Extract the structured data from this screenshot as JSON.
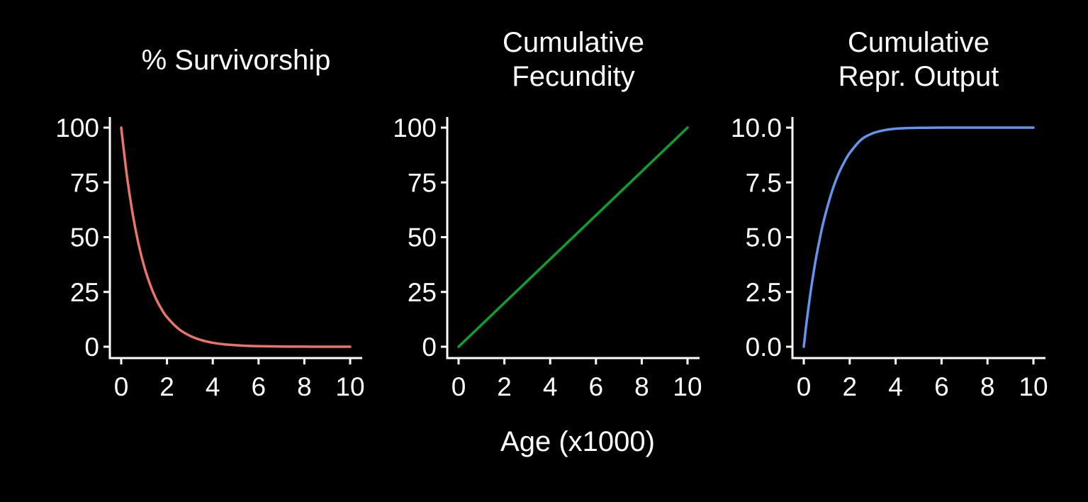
{
  "figure": {
    "xlabel": "Age (x1000)",
    "background": "#000000",
    "foreground": "#ffffff"
  },
  "chart_data": [
    {
      "type": "line",
      "title_lines": [
        "% Survivorship"
      ],
      "xlim": [
        0,
        10
      ],
      "ylim": [
        0,
        100
      ],
      "xticks": [
        0,
        2,
        4,
        6,
        8,
        10
      ],
      "yticks": [
        0,
        25,
        50,
        75,
        100
      ],
      "ytick_labels": [
        "0",
        "25",
        "50",
        "75",
        "100"
      ],
      "grid": false,
      "series": [
        {
          "color": "#E8746A",
          "x": [
            0,
            0.25,
            0.5,
            0.75,
            1,
            1.25,
            1.5,
            1.75,
            2,
            2.5,
            3,
            3.5,
            4,
            4.5,
            5,
            5.5,
            6,
            7,
            8,
            9,
            10
          ],
          "y": [
            100,
            77.9,
            60.7,
            47.2,
            36.8,
            28.7,
            22.3,
            17.4,
            13.5,
            8.2,
            5.0,
            3.0,
            1.8,
            1.1,
            0.7,
            0.4,
            0.25,
            0.1,
            0.03,
            0.01,
            0.0
          ]
        }
      ]
    },
    {
      "type": "line",
      "title_lines": [
        "Cumulative",
        "Fecundity"
      ],
      "xlim": [
        0,
        10
      ],
      "ylim": [
        0,
        100
      ],
      "xticks": [
        0,
        2,
        4,
        6,
        8,
        10
      ],
      "yticks": [
        0,
        25,
        50,
        75,
        100
      ],
      "ytick_labels": [
        "0",
        "25",
        "50",
        "75",
        "100"
      ],
      "grid": false,
      "series": [
        {
          "color": "#0E9F2E",
          "x": [
            0,
            10
          ],
          "y": [
            0,
            100
          ]
        }
      ]
    },
    {
      "type": "line",
      "title_lines": [
        "Cumulative",
        "Repr. Output"
      ],
      "xlim": [
        0,
        10
      ],
      "ylim": [
        0,
        10
      ],
      "xticks": [
        0,
        2,
        4,
        6,
        8,
        10
      ],
      "yticks": [
        0,
        2.5,
        5,
        7.5,
        10
      ],
      "ytick_labels": [
        "0.0",
        "2.5",
        "5.0",
        "7.5",
        "10.0"
      ],
      "grid": false,
      "series": [
        {
          "color": "#6495ED",
          "x": [
            0,
            0.1,
            0.2,
            0.3,
            0.4,
            0.5,
            0.6,
            0.8,
            1,
            1.25,
            1.5,
            1.75,
            2,
            2.5,
            3,
            3.5,
            4,
            4.5,
            5,
            6,
            7,
            8,
            9,
            10
          ],
          "y": [
            0,
            0.93,
            1.76,
            2.52,
            3.21,
            3.85,
            4.42,
            5.44,
            6.27,
            7.16,
            7.86,
            8.4,
            8.84,
            9.45,
            9.74,
            9.88,
            9.95,
            9.98,
            9.99,
            10.0,
            10.0,
            10.0,
            10.0,
            10.0
          ]
        }
      ]
    }
  ]
}
